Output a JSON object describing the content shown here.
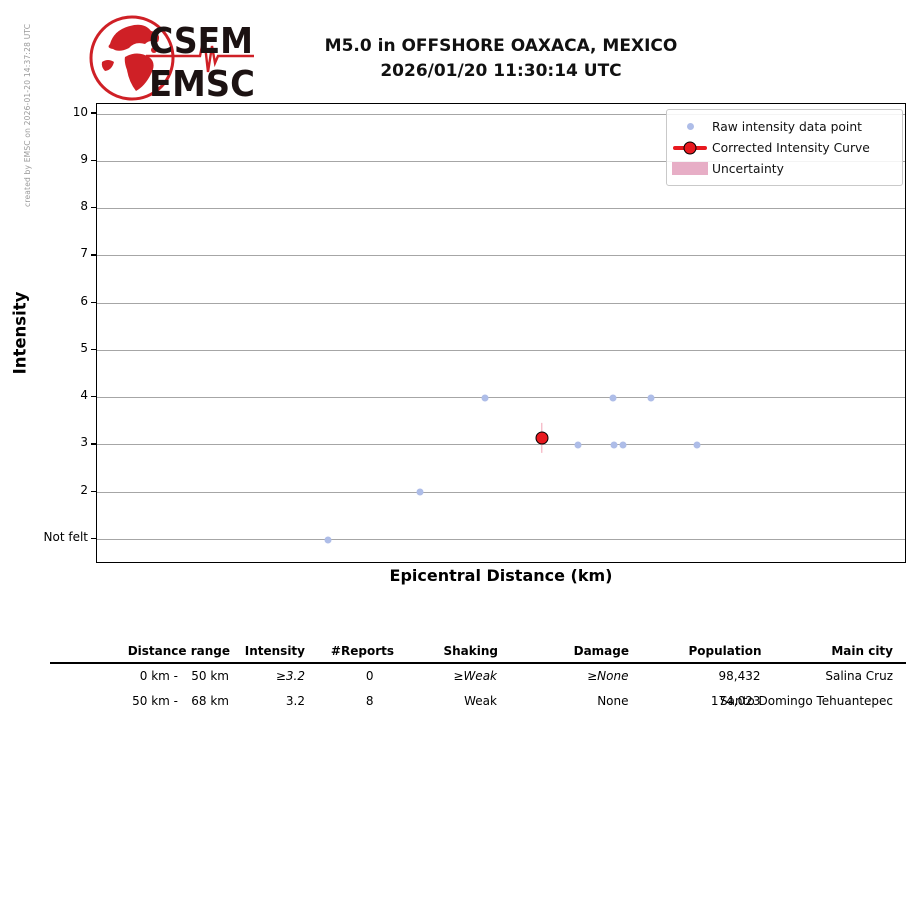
{
  "figure": {
    "created_by": "created by EMSC on 2026-01-20 14:37:28 UTC"
  },
  "logo": {
    "line1": "CSEM",
    "line2": "EMSC",
    "globe_icon": "emsc-globe-icon",
    "seismogram_icon": "seismogram-trace-icon"
  },
  "title": {
    "line1": "M5.0 in OFFSHORE OAXACA, MEXICO",
    "line2": "2026/01/20 11:30:14 UTC"
  },
  "chart_data": {
    "type": "scatter",
    "title": "M5.0 in OFFSHORE OAXACA, MEXICO 2026/01/20 11:30:14 UTC",
    "xlabel": "Epicentral Distance (km)",
    "ylabel": "Intensity",
    "x_axis": {
      "tick_labels_visible": false,
      "x_unit": "fraction of axis width (no tick labels shown)"
    },
    "y_axis": {
      "ticks": [
        {
          "value": 10,
          "label": "10"
        },
        {
          "value": 9,
          "label": "9"
        },
        {
          "value": 8,
          "label": "8"
        },
        {
          "value": 7,
          "label": "7"
        },
        {
          "value": 6,
          "label": "6"
        },
        {
          "value": 5,
          "label": "5"
        },
        {
          "value": 4,
          "label": "4"
        },
        {
          "value": 3,
          "label": "3"
        },
        {
          "value": 2,
          "label": "2"
        },
        {
          "value": 1,
          "label": "Not felt"
        }
      ],
      "grid": true
    },
    "legend": {
      "position": "upper right",
      "items": [
        {
          "label": "Raw intensity data point",
          "marker": "raw-dot"
        },
        {
          "label": "Corrected Intensity Curve",
          "marker": "red-line-dot"
        },
        {
          "label": "Uncertainty",
          "marker": "pink-patch"
        }
      ]
    },
    "series": [
      {
        "name": "Raw intensity data point",
        "points": [
          {
            "x_frac": 0.285,
            "intensity": 1
          },
          {
            "x_frac": 0.399,
            "intensity": 2
          },
          {
            "x_frac": 0.479,
            "intensity": 4
          },
          {
            "x_frac": 0.594,
            "intensity": 3
          },
          {
            "x_frac": 0.637,
            "intensity": 4
          },
          {
            "x_frac": 0.638,
            "intensity": 3
          },
          {
            "x_frac": 0.649,
            "intensity": 3
          },
          {
            "x_frac": 0.684,
            "intensity": 4
          },
          {
            "x_frac": 0.741,
            "intensity": 3
          }
        ]
      },
      {
        "name": "Corrected Intensity Curve",
        "points": [
          {
            "x_frac": 0.549,
            "intensity": 3.15,
            "uncertainty": 0.32
          }
        ]
      }
    ]
  },
  "table": {
    "headers": [
      "Distance range",
      "Intensity",
      "#Reports",
      "Shaking",
      "Damage",
      "Population",
      "Main city"
    ],
    "rows": [
      {
        "range_from": "0 km -",
        "range_to": "50 km",
        "intensity": "≥3.2",
        "reports": "0",
        "shaking": "≥Weak",
        "damage": "≥None",
        "population": "98,432",
        "city": "Salina Cruz",
        "emphasized": true
      },
      {
        "range_from": "50 km -",
        "range_to": "68 km",
        "intensity": "3.2",
        "reports": "8",
        "shaking": "Weak",
        "damage": "None",
        "population": "174,023",
        "city": "Santo Domingo Tehuantepec",
        "emphasized": false
      }
    ]
  },
  "colors": {
    "raw_point": "#aebde8",
    "corrected_point": "#e8191f",
    "error_bar": "#f2a3b3",
    "uncertainty_patch": "#e7aec6",
    "gridline": "#a6a6a6",
    "logo_red": "#cf2026",
    "logo_text": "#1c1212"
  }
}
